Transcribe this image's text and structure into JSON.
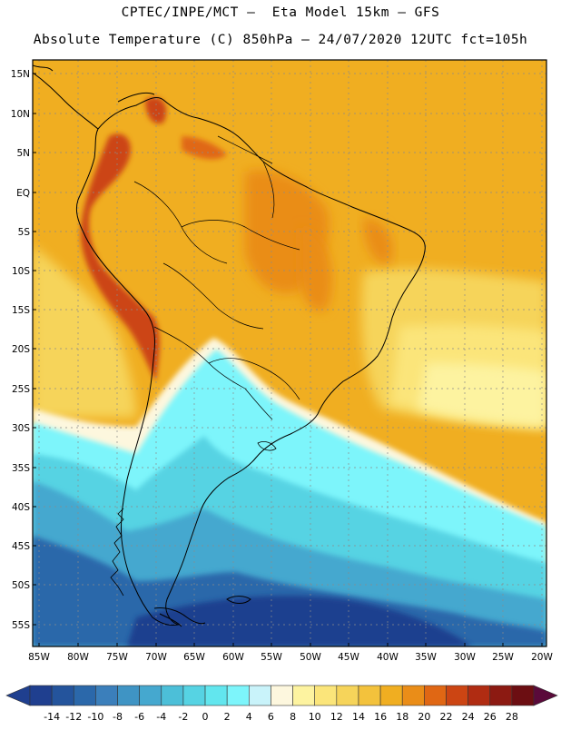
{
  "header": {
    "line1": "CPTEC/INPE/MCT –  Eta Model 15km – GFS",
    "line2": "Absolute Temperature (C) 850hPa – 24/07/2020 12UTC fct=105h"
  },
  "map": {
    "lat_labels": [
      "15N",
      "10N",
      "5N",
      "EQ",
      "5S",
      "10S",
      "15S",
      "20S",
      "25S",
      "30S",
      "35S",
      "40S",
      "45S",
      "50S",
      "55S"
    ],
    "lon_labels": [
      "85W",
      "80W",
      "75W",
      "70W",
      "65W",
      "60W",
      "55W",
      "50W",
      "45W",
      "40W",
      "35W",
      "30W",
      "25W",
      "20W"
    ]
  },
  "colorbar": {
    "labels": [
      "-14",
      "-12",
      "-10",
      "-8",
      "-6",
      "-4",
      "-2",
      "0",
      "2",
      "4",
      "6",
      "8",
      "10",
      "12",
      "14",
      "16",
      "18",
      "20",
      "22",
      "24",
      "26",
      "28"
    ],
    "colors": [
      "#1f3f8f",
      "#24549c",
      "#2b68aa",
      "#3b7fbb",
      "#3f94c4",
      "#45a8cf",
      "#4cbfd8",
      "#56d3e3",
      "#62e6ee",
      "#7df5fb",
      "#c9f3fa",
      "#fdf7de",
      "#fdf3a0",
      "#fbe57a",
      "#f6d45a",
      "#f3c23c",
      "#f0ae21",
      "#ea8d18",
      "#e06714",
      "#cc4513",
      "#b02c12",
      "#8c1a12",
      "#6c0e12"
    ]
  },
  "colors": {
    "tropical_orange": "#f0ae21",
    "subtropical_yellow": "#f6d45a",
    "cold_cyan": "#62e6ee",
    "deep_blue": "#24549c",
    "coast_line": "#000000"
  }
}
